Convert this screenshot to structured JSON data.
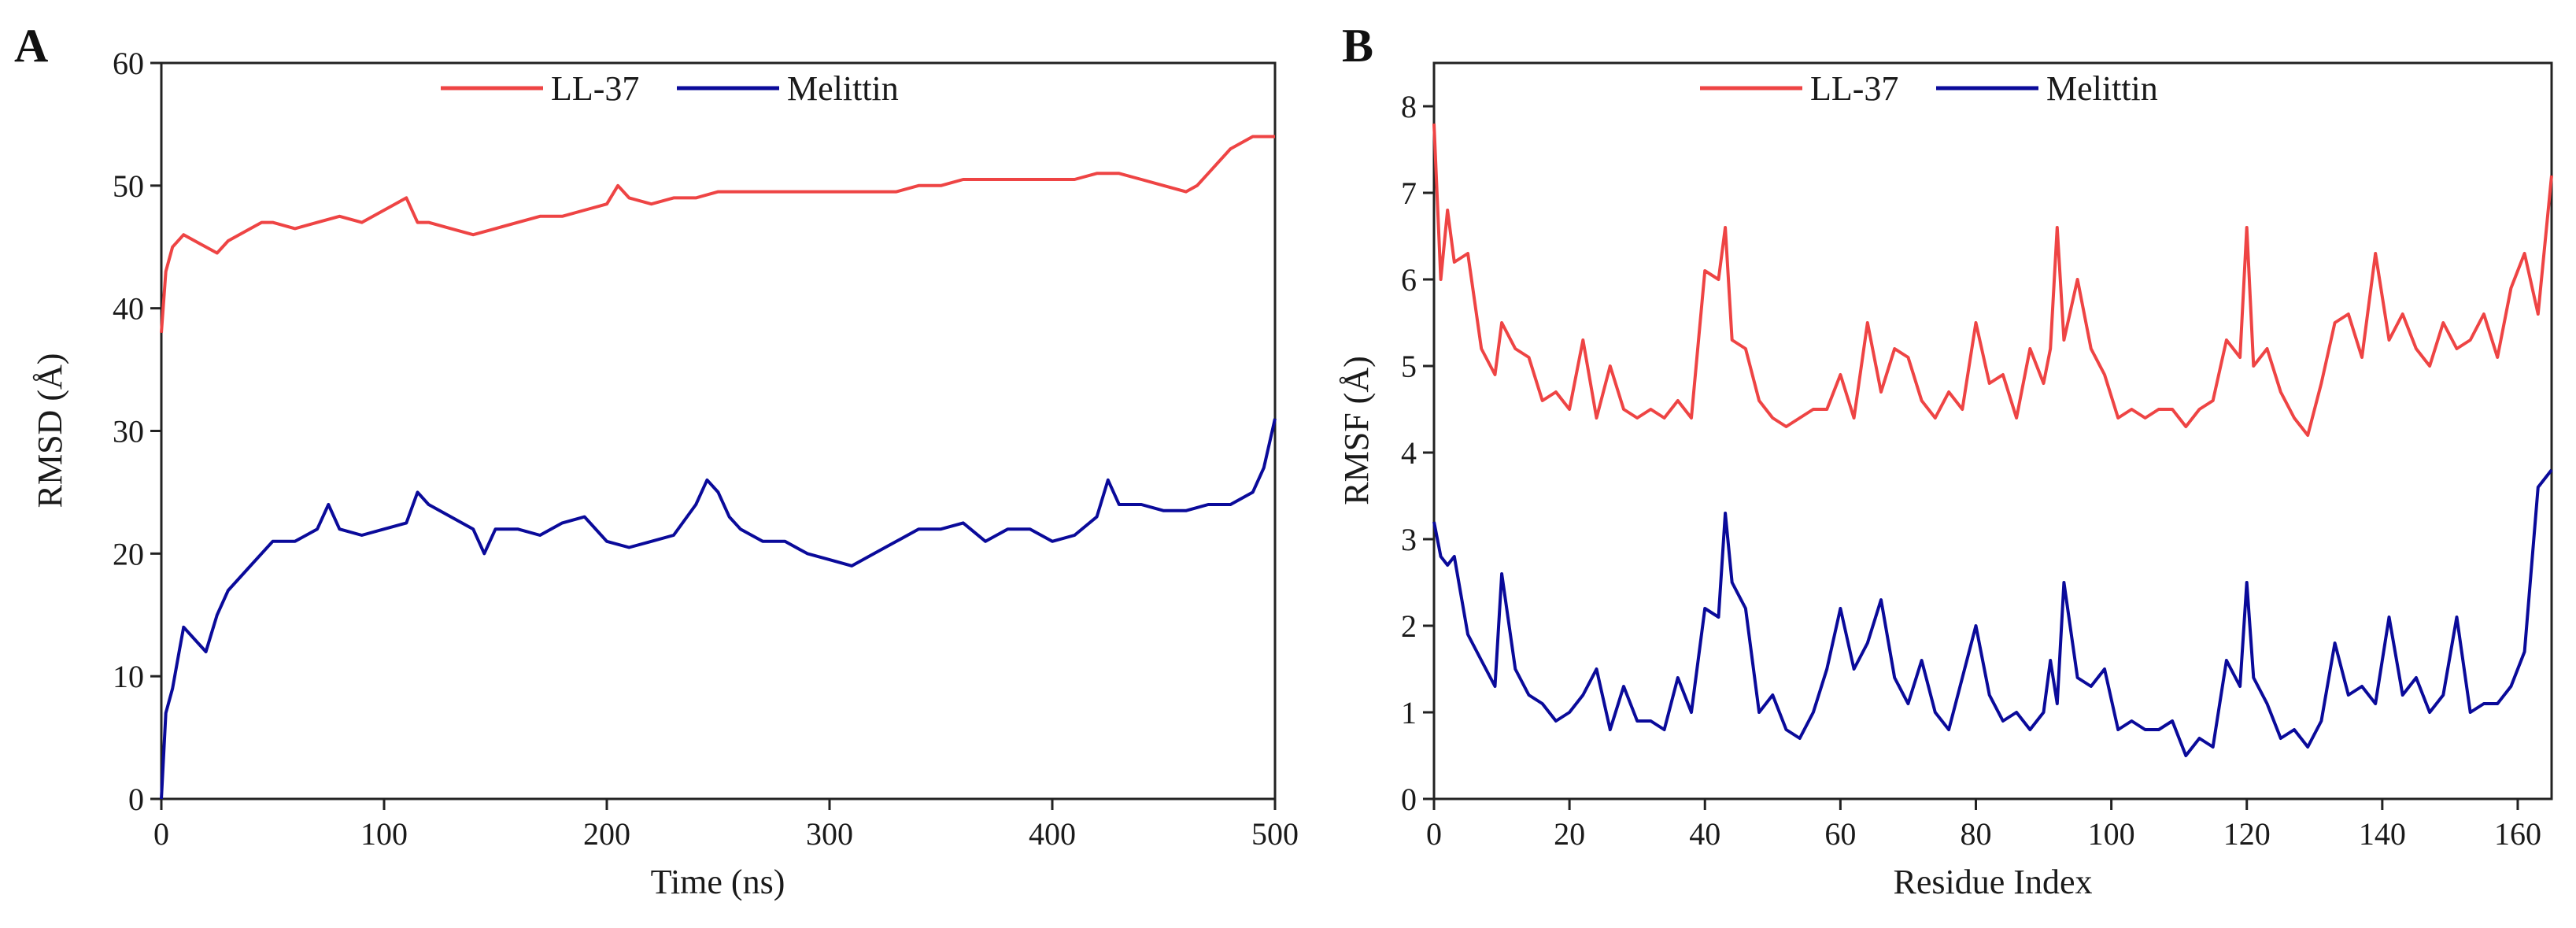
{
  "chart_data": [
    {
      "panel": "A",
      "type": "line",
      "xlabel": "Time (ns)",
      "ylabel": "RMSD (Å)",
      "xlim": [
        0,
        500
      ],
      "ylim": [
        0,
        60
      ],
      "x_ticks": [
        "0",
        "100",
        "200",
        "300",
        "400",
        "500"
      ],
      "y_ticks": [
        "0",
        "10",
        "20",
        "30",
        "40",
        "50",
        "60"
      ],
      "legend": {
        "placement": "top-center"
      },
      "series": [
        {
          "name": "LL-37",
          "color": "#ee4444",
          "x": [
            0,
            2,
            5,
            10,
            15,
            20,
            25,
            30,
            40,
            45,
            50,
            60,
            70,
            80,
            90,
            100,
            105,
            110,
            115,
            120,
            130,
            140,
            150,
            160,
            170,
            180,
            190,
            200,
            205,
            210,
            220,
            230,
            240,
            250,
            260,
            270,
            280,
            290,
            300,
            310,
            320,
            330,
            340,
            350,
            360,
            370,
            380,
            390,
            400,
            410,
            420,
            430,
            440,
            450,
            460,
            465,
            470,
            480,
            490,
            500
          ],
          "y": [
            38,
            43,
            45,
            46,
            45.5,
            45,
            44.5,
            45.5,
            46.5,
            47,
            47,
            46.5,
            47,
            47.5,
            47,
            48,
            48.5,
            49,
            47,
            47,
            46.5,
            46,
            46.5,
            47,
            47.5,
            47.5,
            48,
            48.5,
            50,
            49,
            48.5,
            49,
            49,
            49.5,
            49.5,
            49.5,
            49.5,
            49.5,
            49.5,
            49.5,
            49.5,
            49.5,
            50,
            50,
            50.5,
            50.5,
            50.5,
            50.5,
            50.5,
            50.5,
            51,
            51,
            50.5,
            50,
            49.5,
            50,
            51,
            53,
            54,
            54
          ]
        },
        {
          "name": "Melittin",
          "color": "#0a0a9a",
          "x": [
            0,
            2,
            5,
            8,
            10,
            15,
            20,
            25,
            30,
            40,
            50,
            60,
            70,
            75,
            80,
            90,
            100,
            110,
            115,
            120,
            130,
            140,
            145,
            150,
            160,
            170,
            180,
            190,
            200,
            210,
            220,
            230,
            240,
            245,
            250,
            255,
            260,
            270,
            280,
            290,
            300,
            310,
            320,
            330,
            340,
            350,
            360,
            370,
            380,
            390,
            400,
            410,
            420,
            425,
            430,
            440,
            450,
            460,
            470,
            480,
            490,
            495,
            500
          ],
          "y": [
            0,
            7,
            9,
            12,
            14,
            13,
            12,
            15,
            17,
            19,
            21,
            21,
            22,
            24,
            22,
            21.5,
            22,
            22.5,
            25,
            24,
            23,
            22,
            20,
            22,
            22,
            21.5,
            22.5,
            23,
            21,
            20.5,
            21,
            21.5,
            24,
            26,
            25,
            23,
            22,
            21,
            21,
            20,
            19.5,
            19,
            20,
            21,
            22,
            22,
            22.5,
            21,
            22,
            22,
            21,
            21.5,
            23,
            26,
            24,
            24,
            23.5,
            23.5,
            24,
            24,
            25,
            27,
            31
          ]
        }
      ]
    },
    {
      "panel": "B",
      "type": "line",
      "xlabel": "Residue Index",
      "ylabel": "RMSF (Å)",
      "xlim": [
        0,
        165
      ],
      "ylim": [
        0,
        8.5
      ],
      "x_ticks": [
        "0",
        "20",
        "40",
        "60",
        "80",
        "100",
        "120",
        "140",
        "160"
      ],
      "y_ticks": [
        "0",
        "1",
        "2",
        "3",
        "4",
        "5",
        "6",
        "7",
        "8"
      ],
      "legend": {
        "placement": "top-center"
      },
      "series": [
        {
          "name": "LL-37",
          "color": "#ee4444",
          "x": [
            0,
            1,
            2,
            3,
            5,
            7,
            9,
            10,
            12,
            14,
            16,
            18,
            20,
            22,
            24,
            26,
            28,
            30,
            32,
            34,
            36,
            38,
            40,
            42,
            43,
            44,
            46,
            48,
            50,
            52,
            54,
            56,
            58,
            60,
            62,
            64,
            66,
            68,
            70,
            72,
            74,
            76,
            78,
            80,
            82,
            84,
            86,
            88,
            90,
            91,
            92,
            93,
            95,
            97,
            99,
            101,
            103,
            105,
            107,
            109,
            111,
            113,
            115,
            117,
            119,
            120,
            121,
            123,
            125,
            127,
            129,
            131,
            133,
            135,
            137,
            139,
            141,
            143,
            145,
            147,
            149,
            151,
            153,
            155,
            157,
            159,
            161,
            163,
            165
          ],
          "y": [
            7.8,
            6,
            6.8,
            6.2,
            6.3,
            5.2,
            4.9,
            5.5,
            5.2,
            5.1,
            4.6,
            4.7,
            4.5,
            5.3,
            4.4,
            5,
            4.5,
            4.4,
            4.5,
            4.4,
            4.6,
            4.4,
            6.1,
            6,
            6.6,
            5.3,
            5.2,
            4.6,
            4.4,
            4.3,
            4.4,
            4.5,
            4.5,
            4.9,
            4.4,
            5.5,
            4.7,
            5.2,
            5.1,
            4.6,
            4.4,
            4.7,
            4.5,
            5.5,
            4.8,
            4.9,
            4.4,
            5.2,
            4.8,
            5.2,
            6.6,
            5.3,
            6,
            5.2,
            4.9,
            4.4,
            4.5,
            4.4,
            4.5,
            4.5,
            4.3,
            4.5,
            4.6,
            5.3,
            5.1,
            6.6,
            5,
            5.2,
            4.7,
            4.4,
            4.2,
            4.8,
            5.5,
            5.6,
            5.1,
            6.3,
            5.3,
            5.6,
            5.2,
            5,
            5.5,
            5.2,
            5.3,
            5.6,
            5.1,
            5.9,
            6.3,
            5.6,
            7.2
          ]
        },
        {
          "name": "Melittin",
          "color": "#0a0a9a",
          "x": [
            0,
            1,
            2,
            3,
            5,
            7,
            9,
            10,
            12,
            14,
            16,
            18,
            20,
            22,
            24,
            26,
            28,
            30,
            32,
            34,
            36,
            38,
            40,
            42,
            43,
            44,
            46,
            48,
            50,
            52,
            54,
            56,
            58,
            60,
            62,
            64,
            66,
            68,
            70,
            72,
            74,
            76,
            78,
            80,
            82,
            84,
            86,
            88,
            90,
            91,
            92,
            93,
            95,
            97,
            99,
            101,
            103,
            105,
            107,
            109,
            111,
            113,
            115,
            117,
            119,
            120,
            121,
            123,
            125,
            127,
            129,
            131,
            133,
            135,
            137,
            139,
            141,
            143,
            145,
            147,
            149,
            151,
            153,
            155,
            157,
            159,
            161,
            163,
            165
          ],
          "y": [
            3.2,
            2.8,
            2.7,
            2.8,
            1.9,
            1.6,
            1.3,
            2.6,
            1.5,
            1.2,
            1.1,
            0.9,
            1,
            1.2,
            1.5,
            0.8,
            1.3,
            0.9,
            0.9,
            0.8,
            1.4,
            1,
            2.2,
            2.1,
            3.3,
            2.5,
            2.2,
            1,
            1.2,
            0.8,
            0.7,
            1,
            1.5,
            2.2,
            1.5,
            1.8,
            2.3,
            1.4,
            1.1,
            1.6,
            1,
            0.8,
            1.4,
            2,
            1.2,
            0.9,
            1,
            0.8,
            1,
            1.6,
            1.1,
            2.5,
            1.4,
            1.3,
            1.5,
            0.8,
            0.9,
            0.8,
            0.8,
            0.9,
            0.5,
            0.7,
            0.6,
            1.6,
            1.3,
            2.5,
            1.4,
            1.1,
            0.7,
            0.8,
            0.6,
            0.9,
            1.8,
            1.2,
            1.3,
            1.1,
            2.1,
            1.2,
            1.4,
            1,
            1.2,
            2.1,
            1,
            1.1,
            1.1,
            1.3,
            1.7,
            3.6,
            3.8
          ]
        }
      ]
    }
  ]
}
